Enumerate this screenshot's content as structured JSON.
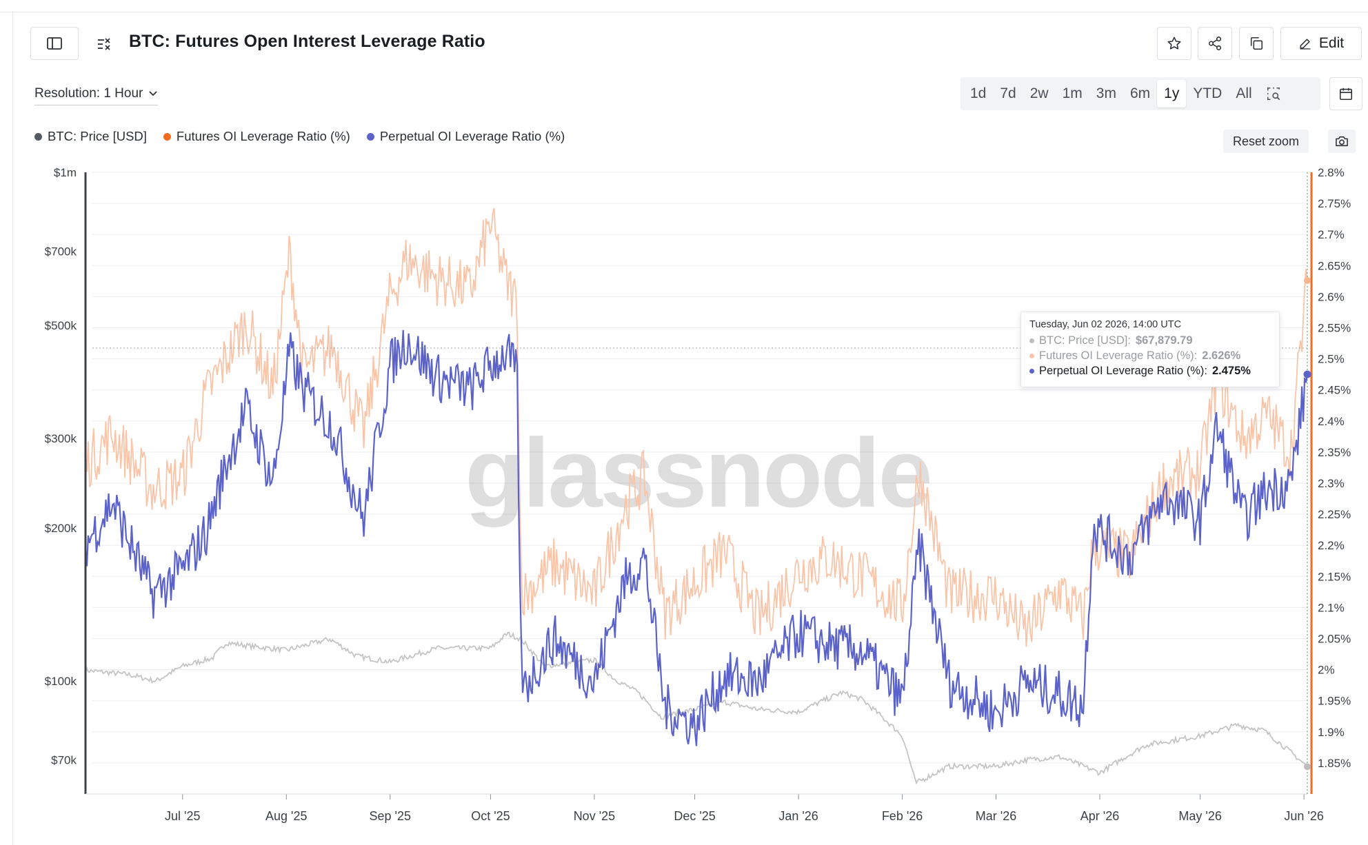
{
  "header": {
    "title": "BTC: Futures Open Interest Leverage Ratio",
    "edit_label": "Edit",
    "resolution_label": "Resolution: 1 Hour"
  },
  "icons": [
    "sidebar-toggle-icon",
    "formula-icon",
    "star-icon",
    "share-icon",
    "copy-icon",
    "pencil-icon",
    "chevron-down-icon",
    "zoom-select-icon",
    "calendar-icon",
    "camera-icon"
  ],
  "range_options": [
    "1d",
    "7d",
    "2w",
    "1m",
    "3m",
    "6m",
    "1y",
    "YTD",
    "All"
  ],
  "active_range": "1y",
  "reset_zoom_label": "Reset zoom",
  "colors": {
    "price": "#c4c4c4",
    "futures": "#f9c4a7",
    "perpetual": "#5b62c9",
    "futures_axis": "#f26b21",
    "legend_price": "#555a61",
    "legend_futures": "#f26b21",
    "legend_perpetual": "#5b62c9"
  },
  "watermark": "glassnode",
  "tooltip": {
    "date": "Tuesday, Jun 02 2026, 14:00 UTC",
    "rows": [
      {
        "label": "BTC: Price [USD]: ",
        "value": "$67,879.79"
      },
      {
        "label": "Futures OI Leverage Ratio (%): ",
        "value": "2.626%"
      },
      {
        "label": "Perpetual OI Leverage Ratio (%): ",
        "value": "2.475%"
      }
    ]
  },
  "chart_data": {
    "type": "line",
    "x_tick_labels": [
      "Jul '25",
      "Aug '25",
      "Sep '25",
      "Oct '25",
      "Nov '25",
      "Dec '25",
      "Jan '26",
      "Feb '26",
      "Mar '26",
      "Apr '26",
      "May '26",
      "Jun '26"
    ],
    "x_range": [
      "2025-06-02",
      "2026-06-02"
    ],
    "left_axis": {
      "scale": "log",
      "range": [
        60000,
        1000000
      ],
      "tick_labels": [
        "$1m",
        "$700k",
        "$500k",
        "$300k",
        "$200k",
        "$100k",
        "$70k"
      ],
      "tick_values": [
        1000000,
        700000,
        500000,
        300000,
        200000,
        100000,
        70000
      ]
    },
    "right_axis": {
      "scale": "linear",
      "range": [
        1.8,
        2.8
      ],
      "tick_labels": [
        "2.8%",
        "2.75%",
        "2.7%",
        "2.65%",
        "2.6%",
        "2.55%",
        "2.5%",
        "2.45%",
        "2.4%",
        "2.35%",
        "2.3%",
        "2.25%",
        "2.2%",
        "2.15%",
        "2.1%",
        "2.05%",
        "2%",
        "1.95%",
        "1.9%",
        "1.85%"
      ],
      "tick_values": [
        2.8,
        2.75,
        2.7,
        2.65,
        2.6,
        2.55,
        2.5,
        2.45,
        2.4,
        2.35,
        2.3,
        2.25,
        2.2,
        2.15,
        2.1,
        2.05,
        2.0,
        1.95,
        1.9,
        1.85
      ]
    },
    "legend": [
      "BTC: Price [USD]",
      "Futures OI Leverage Ratio (%)",
      "Perpetual OI Leverage Ratio (%)"
    ],
    "legend_position": "top-left",
    "grid": true,
    "series": [
      {
        "name": "BTC: Price [USD]",
        "axis": "left",
        "x": [
          "2025-06-02",
          "2025-06-15",
          "2025-06-23",
          "2025-07-01",
          "2025-07-10",
          "2025-07-14",
          "2025-07-22",
          "2025-08-01",
          "2025-08-14",
          "2025-08-22",
          "2025-09-01",
          "2025-09-15",
          "2025-10-01",
          "2025-10-06",
          "2025-10-10",
          "2025-10-17",
          "2025-11-01",
          "2025-11-07",
          "2025-11-14",
          "2025-11-21",
          "2025-12-01",
          "2025-12-10",
          "2025-12-20",
          "2026-01-01",
          "2026-01-14",
          "2026-01-20",
          "2026-02-01",
          "2026-02-05",
          "2026-02-15",
          "2026-03-01",
          "2026-03-10",
          "2026-03-20",
          "2026-04-01",
          "2026-04-15",
          "2026-05-01",
          "2026-05-12",
          "2026-05-20",
          "2026-06-02"
        ],
        "y": [
          105000,
          103000,
          100000,
          107000,
          111000,
          119000,
          117000,
          115000,
          121000,
          112000,
          109000,
          116000,
          116000,
          124000,
          121000,
          107000,
          110000,
          101000,
          95000,
          85000,
          88000,
          91000,
          88000,
          87000,
          95000,
          92000,
          78000,
          63000,
          68000,
          68000,
          70000,
          71000,
          66000,
          75000,
          78000,
          82000,
          80000,
          67880
        ]
      },
      {
        "name": "Futures OI Leverage Ratio (%)",
        "axis": "right",
        "x": [
          "2025-06-02",
          "2025-06-10",
          "2025-06-22",
          "2025-07-01",
          "2025-07-08",
          "2025-07-14",
          "2025-07-20",
          "2025-07-28",
          "2025-08-02",
          "2025-08-06",
          "2025-08-15",
          "2025-08-24",
          "2025-09-01",
          "2025-09-06",
          "2025-09-15",
          "2025-09-25",
          "2025-10-01",
          "2025-10-06",
          "2025-10-09",
          "2025-10-10",
          "2025-10-11",
          "2025-10-20",
          "2025-11-01",
          "2025-11-10",
          "2025-11-16",
          "2025-11-22",
          "2025-12-01",
          "2025-12-10",
          "2025-12-20",
          "2026-01-01",
          "2026-01-10",
          "2026-01-20",
          "2026-02-01",
          "2026-02-06",
          "2026-02-15",
          "2026-03-01",
          "2026-03-10",
          "2026-03-20",
          "2026-03-27",
          "2026-03-30",
          "2026-04-10",
          "2026-04-20",
          "2026-05-01",
          "2026-05-06",
          "2026-05-14",
          "2026-05-21",
          "2026-05-28",
          "2026-06-02"
        ],
        "y": [
          2.33,
          2.38,
          2.29,
          2.31,
          2.44,
          2.5,
          2.56,
          2.45,
          2.67,
          2.48,
          2.52,
          2.38,
          2.6,
          2.66,
          2.63,
          2.61,
          2.72,
          2.62,
          2.59,
          2.16,
          2.12,
          2.17,
          2.12,
          2.26,
          2.31,
          2.09,
          2.14,
          2.19,
          2.08,
          2.16,
          2.18,
          2.15,
          2.1,
          2.32,
          2.12,
          2.12,
          2.06,
          2.13,
          2.08,
          2.2,
          2.18,
          2.3,
          2.32,
          2.47,
          2.37,
          2.41,
          2.35,
          2.626
        ]
      },
      {
        "name": "Perpetual OI Leverage Ratio (%)",
        "axis": "right",
        "x": [
          "2025-06-02",
          "2025-06-10",
          "2025-06-22",
          "2025-07-01",
          "2025-07-08",
          "2025-07-14",
          "2025-07-20",
          "2025-07-28",
          "2025-08-02",
          "2025-08-06",
          "2025-08-15",
          "2025-08-24",
          "2025-09-01",
          "2025-09-06",
          "2025-09-15",
          "2025-09-25",
          "2025-10-01",
          "2025-10-06",
          "2025-10-09",
          "2025-10-10",
          "2025-10-11",
          "2025-10-20",
          "2025-11-01",
          "2025-11-10",
          "2025-11-16",
          "2025-11-22",
          "2025-12-01",
          "2025-12-10",
          "2025-12-20",
          "2026-01-01",
          "2026-01-10",
          "2026-01-20",
          "2026-02-01",
          "2026-02-06",
          "2026-02-15",
          "2026-03-01",
          "2026-03-10",
          "2026-03-20",
          "2026-03-27",
          "2026-03-30",
          "2026-04-10",
          "2026-04-20",
          "2026-05-01",
          "2026-05-06",
          "2026-05-14",
          "2026-05-21",
          "2026-05-28",
          "2026-06-02"
        ],
        "y": [
          2.2,
          2.27,
          2.12,
          2.16,
          2.22,
          2.33,
          2.42,
          2.3,
          2.51,
          2.45,
          2.39,
          2.24,
          2.49,
          2.53,
          2.47,
          2.45,
          2.49,
          2.51,
          2.47,
          2.02,
          1.97,
          2.05,
          1.98,
          2.14,
          2.18,
          1.94,
          1.91,
          1.99,
          1.98,
          2.06,
          2.04,
          2.03,
          1.95,
          2.2,
          1.98,
          1.93,
          1.98,
          1.96,
          1.94,
          2.23,
          2.18,
          2.28,
          2.24,
          2.39,
          2.24,
          2.29,
          2.3,
          2.475
        ]
      }
    ]
  }
}
